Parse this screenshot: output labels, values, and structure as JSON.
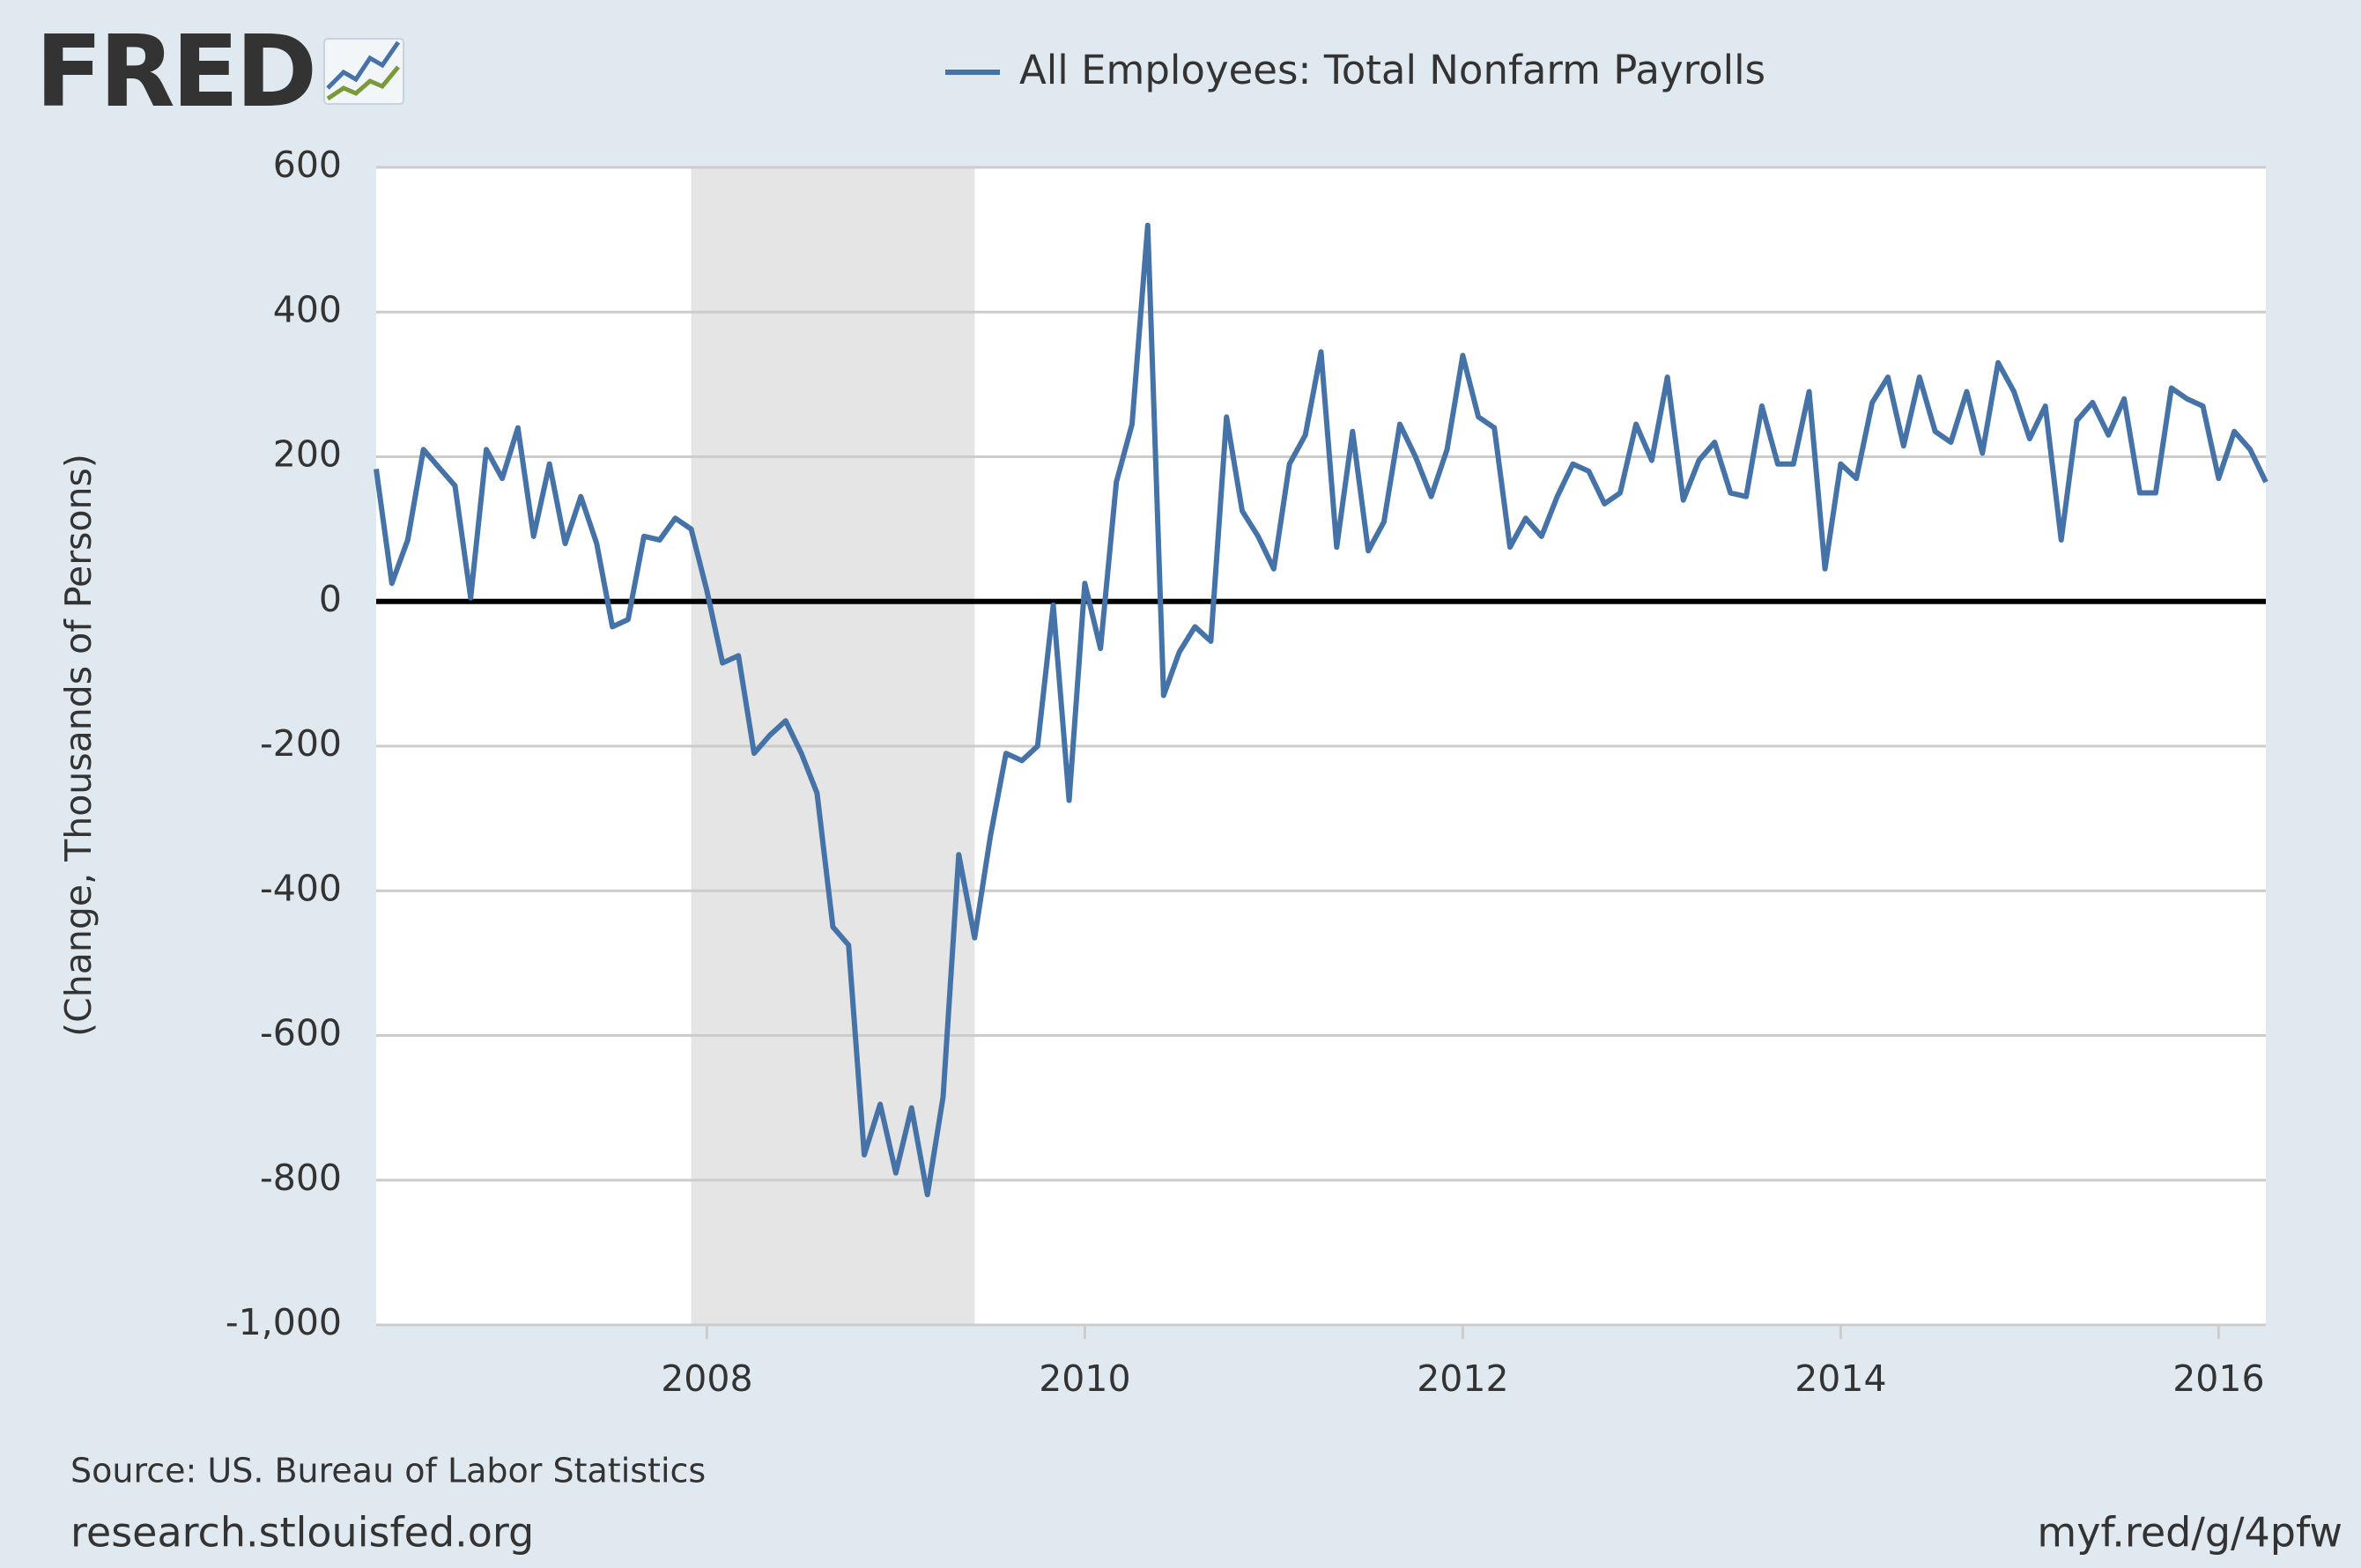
{
  "chart_data": {
    "type": "line",
    "logo": "FRED",
    "y_label": "(Change, Thousands of Persons)",
    "source": "Source: US. Bureau of Labor Statistics",
    "footer_left": "research.stlouisfed.org",
    "footer_right": "myf.red/g/4pfw",
    "xlim": [
      2006.25,
      2016.25
    ],
    "xticks": [
      2008,
      2010,
      2012,
      2014,
      2016
    ],
    "ylim": [
      -1000,
      600
    ],
    "yticks": [
      {
        "value": -1000,
        "label": "-1,000"
      },
      -800,
      -600,
      -400,
      -200,
      0,
      200,
      400,
      600
    ],
    "grid": true,
    "recession": [
      2007.917,
      2009.417
    ],
    "x": [
      2006.25,
      2006.333,
      2006.417,
      2006.5,
      2006.583,
      2006.667,
      2006.75,
      2006.833,
      2006.917,
      2007,
      2007.083,
      2007.167,
      2007.25,
      2007.333,
      2007.417,
      2007.5,
      2007.583,
      2007.667,
      2007.75,
      2007.833,
      2007.917,
      2008,
      2008.083,
      2008.167,
      2008.25,
      2008.333,
      2008.417,
      2008.5,
      2008.583,
      2008.667,
      2008.75,
      2008.833,
      2008.917,
      2009,
      2009.083,
      2009.167,
      2009.25,
      2009.333,
      2009.417,
      2009.5,
      2009.583,
      2009.667,
      2009.75,
      2009.833,
      2009.917,
      2010,
      2010.083,
      2010.167,
      2010.25,
      2010.333,
      2010.417,
      2010.5,
      2010.583,
      2010.667,
      2010.75,
      2010.833,
      2010.917,
      2011,
      2011.083,
      2011.167,
      2011.25,
      2011.333,
      2011.417,
      2011.5,
      2011.583,
      2011.667,
      2011.75,
      2011.833,
      2011.917,
      2012,
      2012.083,
      2012.167,
      2012.25,
      2012.333,
      2012.417,
      2012.5,
      2012.583,
      2012.667,
      2012.75,
      2012.833,
      2012.917,
      2013,
      2013.083,
      2013.167,
      2013.25,
      2013.333,
      2013.417,
      2013.5,
      2013.583,
      2013.667,
      2013.75,
      2013.833,
      2013.917,
      2014,
      2014.083,
      2014.167,
      2014.25,
      2014.333,
      2014.417,
      2014.5,
      2014.583,
      2014.667,
      2014.75,
      2014.833,
      2014.917,
      2015,
      2015.083,
      2015.167,
      2015.25,
      2015.333,
      2015.417,
      2015.5,
      2015.583,
      2015.667,
      2015.75,
      2015.833,
      2015.917,
      2016,
      2016.083,
      2016.167,
      2016.25
    ],
    "series": [
      {
        "name": "All Employees: Total Nonfarm Payrolls",
        "color": "#4572a7",
        "values": [
          183,
          25,
          85,
          210,
          185,
          160,
          5,
          210,
          170,
          240,
          90,
          190,
          80,
          145,
          80,
          -35,
          -25,
          90,
          85,
          115,
          100,
          15,
          -85,
          -75,
          -210,
          -185,
          -165,
          -210,
          -265,
          -450,
          -475,
          -765,
          -695,
          -790,
          -700,
          -820,
          -685,
          -350,
          -465,
          -325,
          -210,
          -220,
          -200,
          -5,
          -275,
          25,
          -65,
          165,
          245,
          520,
          -130,
          -70,
          -35,
          -55,
          255,
          125,
          90,
          45,
          190,
          230,
          345,
          75,
          235,
          70,
          110,
          245,
          200,
          145,
          210,
          340,
          255,
          240,
          75,
          115,
          90,
          145,
          190,
          180,
          135,
          150,
          245,
          195,
          310,
          140,
          195,
          220,
          150,
          145,
          270,
          190,
          190,
          290,
          45,
          190,
          170,
          275,
          310,
          215,
          310,
          235,
          220,
          290,
          205,
          330,
          290,
          225,
          270,
          85,
          250,
          275,
          230,
          280,
          150,
          150,
          295,
          280,
          270,
          170,
          235,
          210,
          165
        ]
      }
    ]
  }
}
